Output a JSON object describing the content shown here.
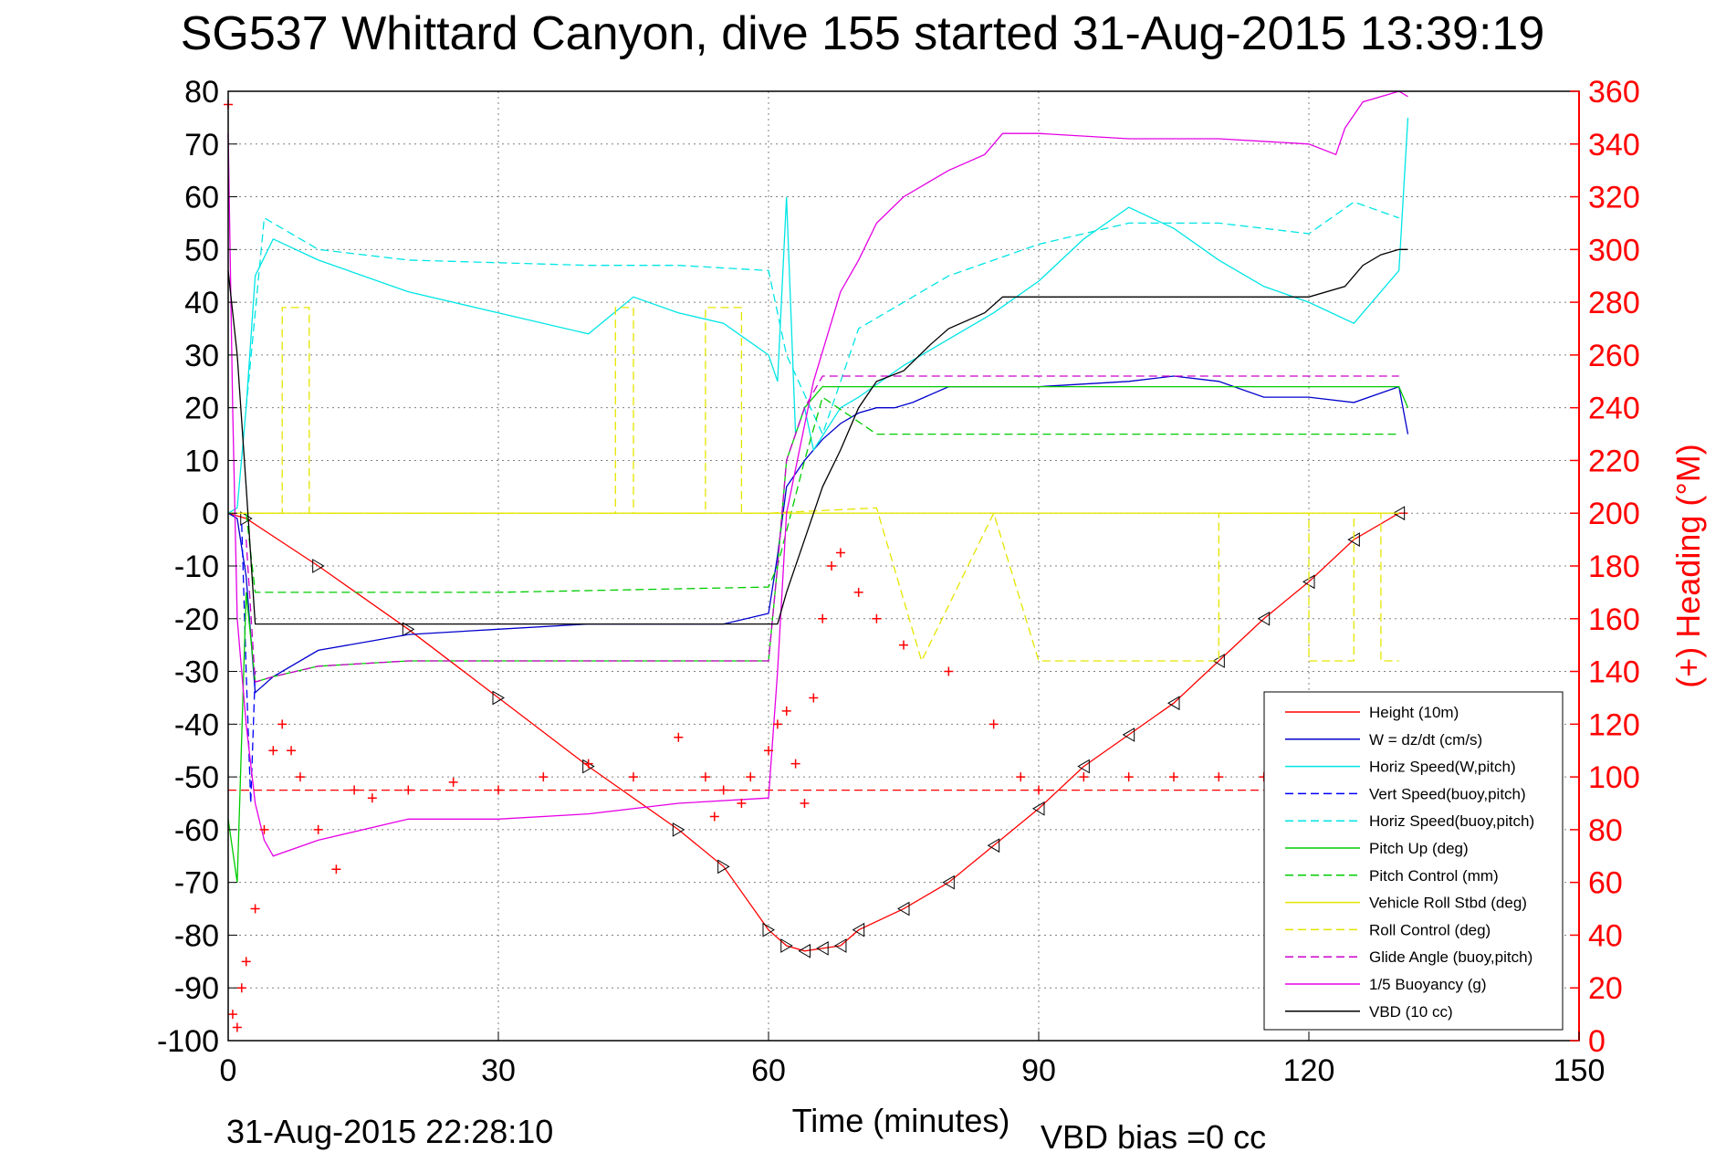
{
  "chart_data": {
    "type": "line",
    "title": "SG537 Whittard Canyon, dive 155 started 31-Aug-2015 13:39:19",
    "xlabel": "Time (minutes)",
    "ylabel_right": "(+) Heading (°M)",
    "footer_left": "31-Aug-2015 22:28:10",
    "footer_right": "VBD bias =0 cc",
    "xlim": [
      0,
      150
    ],
    "ylim": [
      -100,
      80
    ],
    "ylim_right": [
      0,
      360
    ],
    "xticks": [
      "0",
      "30",
      "60",
      "90",
      "120",
      "150"
    ],
    "yticks": [
      "80",
      "70",
      "60",
      "50",
      "40",
      "30",
      "20",
      "10",
      "0",
      "-10",
      "-20",
      "-30",
      "-40",
      "-50",
      "-60",
      "-70",
      "-80",
      "-90",
      "-100"
    ],
    "yticks_right": [
      "360",
      "340",
      "320",
      "300",
      "280",
      "260",
      "240",
      "220",
      "200",
      "180",
      "160",
      "140",
      "120",
      "100",
      "80",
      "60",
      "40",
      "20",
      "0"
    ],
    "grid": true,
    "legend_position": "lower-right",
    "series": [
      {
        "name": "Height (10m)",
        "color": "#ff0000",
        "dash": "solid",
        "x": [
          0,
          2,
          10,
          20,
          30,
          40,
          50,
          55,
          60,
          62,
          64,
          66,
          68,
          70,
          75,
          80,
          85,
          90,
          95,
          100,
          105,
          110,
          115,
          120,
          125,
          130,
          131
        ],
        "y": [
          0,
          -1,
          -10,
          -22,
          -35,
          -48,
          -60,
          -67,
          -79,
          -82,
          -83,
          -82.5,
          -82,
          -79,
          -75,
          -70,
          -63,
          -56,
          -48,
          -42,
          -36,
          -28,
          -20,
          -13,
          -5,
          0,
          0
        ]
      },
      {
        "name": "W = dz/dt (cm/s)",
        "color": "#0000cc",
        "dash": "solid",
        "x": [
          0,
          1,
          2,
          3,
          5,
          10,
          20,
          30,
          40,
          50,
          55,
          60,
          61,
          62,
          64,
          66,
          68,
          70,
          72,
          74,
          76,
          80,
          85,
          90,
          100,
          105,
          110,
          115,
          120,
          125,
          130,
          131
        ],
        "y": [
          0,
          -1,
          -12,
          -34,
          -31,
          -26,
          -23,
          -22,
          -21,
          -21,
          -21,
          -19,
          -8,
          5,
          10,
          14,
          17,
          19,
          20,
          20,
          21,
          24,
          24,
          24,
          25,
          26,
          25,
          22,
          22,
          21,
          24,
          15
        ]
      },
      {
        "name": "Horiz Speed(W,pitch)",
        "color": "#00e5e5",
        "dash": "solid",
        "x": [
          0,
          1,
          2,
          3,
          5,
          10,
          20,
          30,
          40,
          45,
          50,
          55,
          60,
          61,
          62,
          63,
          64,
          65,
          68,
          70,
          75,
          80,
          85,
          90,
          95,
          100,
          105,
          110,
          115,
          120,
          125,
          130,
          131
        ],
        "y": [
          0,
          1,
          20,
          45,
          52,
          48,
          42,
          38,
          34,
          41,
          38,
          36,
          30,
          25,
          60,
          15,
          20,
          12,
          20,
          22,
          28,
          33,
          38,
          44,
          52,
          58,
          54,
          48,
          43,
          40,
          36,
          46,
          75
        ]
      },
      {
        "name": "Vert Speed(buoy,pitch)",
        "color": "#0000ff",
        "dash": "dashed",
        "x": [
          1.5,
          2,
          2.5,
          3
        ],
        "y": [
          -2,
          -30,
          -55,
          -30
        ]
      },
      {
        "name": "Horiz Speed(buoy,pitch)",
        "color": "#00e5e5",
        "dash": "dashed",
        "x": [
          2,
          4,
          10,
          20,
          40,
          50,
          60,
          62,
          66,
          70,
          80,
          90,
          100,
          110,
          120,
          125,
          130
        ],
        "y": [
          20,
          56,
          50,
          48,
          47,
          47,
          46,
          30,
          15,
          35,
          45,
          51,
          55,
          55,
          53,
          59,
          56
        ]
      },
      {
        "name": "Pitch Up (deg)",
        "color": "#00cc00",
        "dash": "solid",
        "x": [
          0,
          1,
          2,
          3,
          5,
          10,
          20,
          30,
          40,
          50,
          60,
          61,
          62,
          64,
          66,
          70,
          80,
          90,
          100,
          110,
          120,
          130,
          131
        ],
        "y": [
          -58,
          -70,
          -15,
          -32,
          -31,
          -29,
          -28,
          -28,
          -28,
          -28,
          -28,
          -10,
          10,
          20,
          24,
          24,
          24,
          24,
          24,
          24,
          24,
          24,
          20
        ]
      },
      {
        "name": "Pitch Control (mm)",
        "color": "#00cc00",
        "dash": "dashed",
        "x": [
          2,
          3,
          10,
          30,
          60,
          61,
          64,
          66,
          72,
          80,
          100,
          120,
          130
        ],
        "y": [
          0,
          -15,
          -15,
          -15,
          -14,
          -10,
          10,
          22,
          15,
          15,
          15,
          15,
          15
        ]
      },
      {
        "name": "Vehicle Roll Stbd (deg)",
        "color": "#e5e500",
        "dash": "solid",
        "x": [
          0,
          60,
          64,
          67,
          130
        ],
        "y": [
          0,
          0,
          0,
          0,
          0
        ]
      },
      {
        "name": "Roll Control (deg)",
        "color": "#e5e500",
        "dash": "dashed",
        "x": [
          0,
          6,
          6,
          9,
          9,
          43,
          43,
          45,
          45,
          53,
          53,
          57,
          57,
          60,
          72,
          72,
          77,
          77,
          85,
          85,
          90,
          110,
          110,
          120,
          120,
          125,
          125,
          128,
          128,
          130
        ],
        "y": [
          0,
          0,
          39,
          39,
          0,
          0,
          39,
          39,
          0,
          0,
          39,
          39,
          0,
          0,
          1,
          1,
          -28,
          -28,
          0,
          0,
          -28,
          -28,
          0,
          0,
          -28,
          -28,
          0,
          0,
          -28,
          -28
        ]
      },
      {
        "name": "Glide Angle (buoy,pitch)",
        "color": "#cc00cc",
        "dash": "dashed",
        "x": [
          2,
          3,
          5,
          10,
          20,
          30,
          40,
          50,
          60,
          61,
          62,
          64,
          66,
          70,
          80,
          90,
          100,
          110,
          120,
          130
        ],
        "y": [
          -5,
          -32,
          -31,
          -29,
          -28,
          -28,
          -28,
          -28,
          -28,
          -10,
          10,
          20,
          26,
          26,
          26,
          26,
          26,
          26,
          26,
          26
        ]
      },
      {
        "name": "1/5 Buoyancy (g)",
        "color": "#e500e5",
        "dash": "solid",
        "x": [
          0,
          0.5,
          1,
          2,
          3,
          4,
          5,
          10,
          20,
          30,
          40,
          50,
          60,
          61,
          62,
          65,
          68,
          70,
          72,
          75,
          78,
          80,
          84,
          86,
          90,
          100,
          110,
          120,
          123,
          124,
          126,
          130,
          131
        ],
        "y": [
          72,
          20,
          -20,
          -40,
          -55,
          -62,
          -65,
          -62,
          -58,
          -58,
          -57,
          -55,
          -54,
          -30,
          0,
          25,
          42,
          48,
          55,
          60,
          63,
          65,
          68,
          72,
          72,
          71,
          71,
          70,
          68,
          73,
          78,
          80,
          79
        ]
      },
      {
        "name": "VBD (10 cc)",
        "color": "#000000",
        "dash": "solid",
        "x": [
          0,
          1,
          2,
          3,
          5,
          10,
          20,
          30,
          40,
          50,
          60,
          61,
          62,
          64,
          66,
          68,
          70,
          72,
          75,
          78,
          80,
          84,
          86,
          90,
          100,
          110,
          120,
          124,
          126,
          128,
          130,
          131
        ],
        "y": [
          46,
          30,
          5,
          -21,
          -21,
          -21,
          -21,
          -21,
          -21,
          -21,
          -21,
          -21,
          -15,
          -5,
          5,
          12,
          20,
          25,
          27,
          32,
          35,
          38,
          41,
          41,
          41,
          41,
          41,
          43,
          47,
          49,
          50,
          50
        ]
      },
      {
        "name": "(+) Heading (°M)",
        "color": "#ff0000",
        "dash": "plus",
        "axis": "right",
        "x": [
          0,
          0.5,
          1,
          1.5,
          2,
          3,
          4,
          5,
          6,
          7,
          8,
          10,
          12,
          14,
          16,
          20,
          25,
          30,
          35,
          40,
          45,
          50,
          53,
          54,
          55,
          57,
          58,
          60,
          61,
          62,
          63,
          64,
          65,
          66,
          67,
          68,
          70,
          72,
          75,
          80,
          85,
          88,
          90,
          95,
          100,
          105,
          110,
          115,
          120,
          125,
          130
        ],
        "y": [
          355,
          10,
          5,
          20,
          30,
          50,
          80,
          110,
          120,
          110,
          100,
          80,
          65,
          95,
          92,
          95,
          98,
          95,
          100,
          105,
          100,
          115,
          100,
          85,
          95,
          90,
          100,
          110,
          120,
          125,
          105,
          90,
          130,
          160,
          180,
          185,
          170,
          160,
          150,
          140,
          120,
          100,
          95,
          100,
          100,
          100,
          100,
          100,
          98,
          100,
          100
        ]
      },
      {
        "name": "",
        "color": "#ff0000",
        "dash": "dashed",
        "axis": "right",
        "x": [
          0,
          135
        ],
        "y": [
          95,
          95
        ]
      }
    ]
  }
}
